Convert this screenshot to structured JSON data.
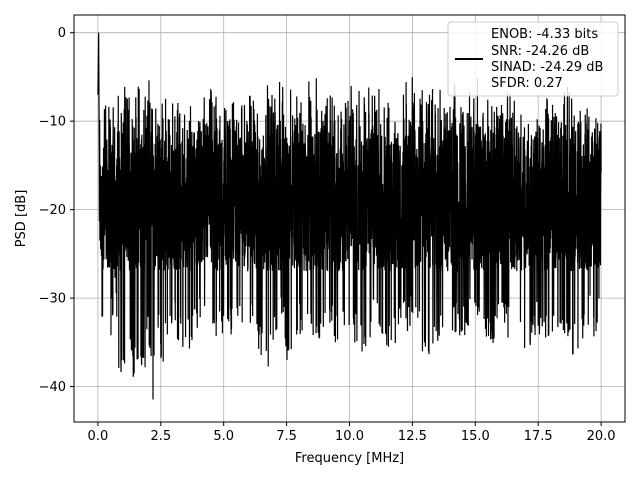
{
  "chart_data": {
    "type": "line",
    "title": "",
    "xlabel": "Frequency [MHz]",
    "ylabel": "PSD [dB]",
    "xlim": [
      -0.95,
      20.95
    ],
    "ylim": [
      -44,
      2
    ],
    "x_ticks": [
      0.0,
      2.5,
      5.0,
      7.5,
      10.0,
      12.5,
      15.0,
      17.5,
      20.0
    ],
    "x_tick_labels": [
      "0.0",
      "2.5",
      "5.0",
      "7.5",
      "10.0",
      "12.5",
      "15.0",
      "17.5",
      "20.0"
    ],
    "y_ticks": [
      0,
      -10,
      -20,
      -30,
      -40
    ],
    "y_tick_labels": [
      "0",
      "−10",
      "−20",
      "−30",
      "−40"
    ],
    "grid": true,
    "legend_position": "top-right",
    "series": [
      {
        "color": "#000000",
        "description": "dense noisy PSD trace from 0 to 20 MHz, peak near 0 dB at 0 MHz, band roughly -30 dB to -5 dB, minima near -42 dB",
        "x": [
          0.0,
          0.03,
          0.06,
          0.1,
          0.2,
          0.3,
          0.5,
          0.7,
          0.8,
          1.0,
          1.2,
          1.4,
          1.6,
          1.8,
          2.0,
          2.2,
          2.3,
          2.5,
          3.0,
          3.5,
          4.0,
          4.5,
          5.0,
          5.5,
          6.0,
          6.5,
          6.6,
          7.0,
          7.4,
          7.5,
          8.0,
          8.5,
          8.9,
          9.0,
          9.5,
          10.0,
          10.5,
          10.7,
          11.0,
          11.5,
          12.0,
          12.5,
          13.0,
          13.3,
          13.5,
          14.0,
          14.5,
          15.0,
          15.5,
          16.0,
          16.5,
          17.0,
          17.5,
          18.0,
          18.5,
          19.0,
          19.5,
          19.9,
          20.0
        ],
        "y": [
          -7,
          0,
          -17,
          -30,
          -35,
          -20,
          -36,
          -28,
          -38,
          -41,
          -33,
          -39,
          -37,
          -41,
          -34,
          -42,
          -30,
          -38,
          -34,
          -37,
          -33,
          -36,
          -34,
          -35,
          -33,
          -37,
          -40,
          -35,
          -33,
          -39,
          -34,
          -35,
          -37,
          -32,
          -36,
          -34,
          -37,
          -38,
          -32,
          -36,
          -35,
          -33,
          -37,
          -38,
          -36,
          -34,
          -35,
          -33,
          -36,
          -34,
          -35,
          -37,
          -34,
          -36,
          -35,
          -37,
          -33,
          -36,
          -17
        ],
        "upper_envelope": [
          -5,
          -4,
          -6,
          -6,
          -5,
          -6,
          -5,
          -4,
          -5,
          -5,
          -6,
          -4,
          -5,
          -4,
          -5,
          -6,
          -5,
          -5,
          -4
        ]
      }
    ],
    "legend": {
      "lines": [
        "ENOB: -4.33 bits",
        "SNR: -24.26 dB",
        "SINAD: -24.29 dB",
        "SFDR: 0.27"
      ]
    }
  }
}
